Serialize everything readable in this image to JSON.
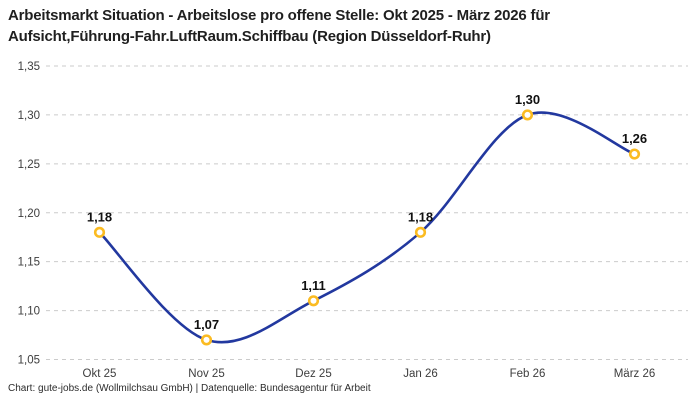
{
  "header": {
    "title_line1": "Arbeitsmarkt Situation - Arbeitslose pro offene Stelle: Okt 2025 - März 2026 für",
    "title_line2": "Aufsicht,Führung-Fahr.LuftRaum.Schiffbau (Region Düsseldorf-Ruhr)"
  },
  "chart_data": {
    "type": "line",
    "title": "Arbeitsmarkt Situation - Arbeitslose pro offene Stelle: Okt 2025 - März 2026 für Aufsicht,Führung-Fahr.LuftRaum.Schiffbau (Region Düsseldorf-Ruhr)",
    "categories": [
      "Okt 25",
      "Nov 25",
      "Dez 25",
      "Jan 26",
      "Feb 26",
      "März 26"
    ],
    "series": [
      {
        "name": "Arbeitslose pro offene Stelle",
        "values": [
          1.18,
          1.07,
          1.11,
          1.18,
          1.3,
          1.26
        ],
        "point_labels": [
          "1,18",
          "1,07",
          "1,11",
          "1,18",
          "1,30",
          "1,26"
        ]
      }
    ],
    "xlabel": "",
    "ylabel": "",
    "ylim": [
      1.05,
      1.35
    ],
    "y_ticks": [
      {
        "value": 1.35,
        "label": "1,35"
      },
      {
        "value": 1.3,
        "label": "1,30"
      },
      {
        "value": 1.25,
        "label": "1,25"
      },
      {
        "value": 1.2,
        "label": "1,20"
      },
      {
        "value": 1.15,
        "label": "1,15"
      },
      {
        "value": 1.1,
        "label": "1,10"
      },
      {
        "value": 1.05,
        "label": "1,05"
      }
    ],
    "grid": "horizontal-dashed",
    "legend": "none",
    "colors": {
      "line": "#22389f",
      "marker_ring": "#fbbb21",
      "marker_fill": "#ffffff",
      "gridline": "#cbcbcb",
      "tick_text": "#3d3d3d",
      "label_text": "#111111"
    }
  },
  "footer": {
    "text": "Chart: gute-jobs.de (Wollmilchsau GmbH) | Datenquelle: Bundesagentur für Arbeit"
  }
}
